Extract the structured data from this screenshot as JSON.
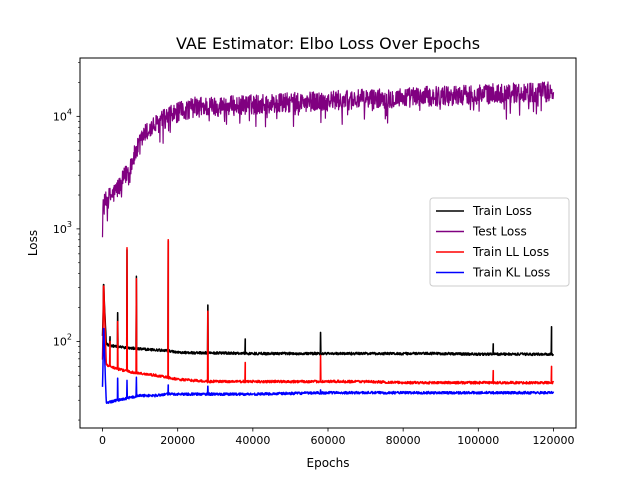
{
  "chart_data": {
    "type": "line",
    "title": "VAE Estimator: Elbo Loss Over Epochs",
    "xlabel": "Epochs",
    "ylabel": "Loss",
    "yscale": "log",
    "xlim": [
      -6000,
      126000
    ],
    "ylim": [
      17,
      33000
    ],
    "x_ticks": [
      {
        "value": 0,
        "label": "0"
      },
      {
        "value": 20000,
        "label": "20000"
      },
      {
        "value": 40000,
        "label": "40000"
      },
      {
        "value": 60000,
        "label": "60000"
      },
      {
        "value": 80000,
        "label": "80000"
      },
      {
        "value": 100000,
        "label": "100000"
      },
      {
        "value": 120000,
        "label": "120000"
      }
    ],
    "y_ticks": [
      {
        "value": 100,
        "base": "10",
        "exp": "2"
      },
      {
        "value": 1000,
        "base": "10",
        "exp": "3"
      },
      {
        "value": 10000,
        "base": "10",
        "exp": "4"
      }
    ],
    "grid": false,
    "legend_position": "center-right",
    "series": [
      {
        "name": "Train Loss",
        "color": "#000000",
        "x": [
          0,
          300,
          1000,
          2000,
          4000,
          6000,
          8000,
          10000,
          14000,
          17000,
          20000,
          26000,
          30000,
          40000,
          50000,
          60000,
          70000,
          80000,
          90000,
          100000,
          110000,
          120000
        ],
        "y": [
          110,
          300,
          95,
          92,
          90,
          88,
          87,
          86,
          84,
          83,
          80,
          79,
          79,
          78,
          78,
          78,
          78,
          78,
          78,
          77,
          77,
          77
        ],
        "spikes": [
          [
            300,
            320
          ],
          [
            2000,
            110
          ],
          [
            4000,
            180
          ],
          [
            6500,
            650
          ],
          [
            9000,
            380
          ],
          [
            17500,
            780
          ],
          [
            28000,
            210
          ],
          [
            38000,
            105
          ],
          [
            58000,
            120
          ],
          [
            104000,
            95
          ],
          [
            119500,
            135
          ]
        ]
      },
      {
        "name": "Test Loss",
        "color": "#800080",
        "x": [
          0,
          500,
          1500,
          3000,
          5000,
          7000,
          9000,
          11000,
          14000,
          17000,
          20000,
          25000,
          30000,
          40000,
          50000,
          60000,
          70000,
          80000,
          90000,
          100000,
          110000,
          120000
        ],
        "y": [
          1500,
          1700,
          1900,
          2100,
          2600,
          3500,
          5000,
          7000,
          8500,
          10000,
          11000,
          12500,
          12500,
          13000,
          13500,
          14000,
          14500,
          15000,
          15500,
          16000,
          16500,
          17000
        ]
      },
      {
        "name": "Train LL Loss",
        "color": "#ff0000",
        "x": [
          0,
          300,
          1000,
          2000,
          4000,
          6000,
          8000,
          10000,
          14000,
          17000,
          20000,
          24000,
          28000,
          40000,
          50000,
          60000,
          70000,
          80000,
          90000,
          100000,
          110000,
          120000
        ],
        "y": [
          70,
          300,
          62,
          60,
          57,
          55,
          53,
          52,
          50,
          48,
          46,
          45,
          44,
          44,
          44,
          44,
          44,
          43,
          43,
          43,
          43,
          43
        ],
        "spikes": [
          [
            300,
            310
          ],
          [
            2000,
            100
          ],
          [
            4000,
            150
          ],
          [
            6500,
            680
          ],
          [
            9000,
            360
          ],
          [
            17500,
            800
          ],
          [
            28000,
            185
          ],
          [
            38000,
            65
          ],
          [
            58000,
            75
          ],
          [
            104000,
            55
          ],
          [
            119500,
            60
          ]
        ]
      },
      {
        "name": "Train KL Loss",
        "color": "#0000ff",
        "x": [
          0,
          300,
          1000,
          2000,
          4000,
          6000,
          8000,
          10000,
          14000,
          17000,
          20000,
          30000,
          40000,
          60000,
          80000,
          100000,
          120000
        ],
        "y": [
          40,
          130,
          28,
          29,
          30,
          31,
          32,
          33,
          33,
          34,
          34,
          34,
          34,
          35,
          35,
          35,
          35
        ],
        "spikes": [
          [
            300,
            130
          ],
          [
            4000,
            47
          ],
          [
            6500,
            45
          ],
          [
            9000,
            48
          ],
          [
            17500,
            41
          ],
          [
            28000,
            40
          ],
          [
            58000,
            37
          ]
        ]
      }
    ]
  }
}
